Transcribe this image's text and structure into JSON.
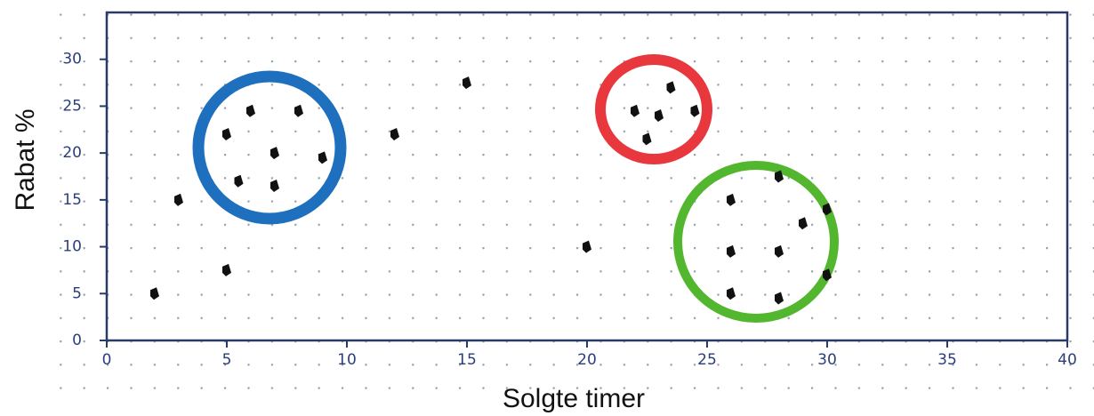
{
  "chart_data": {
    "type": "scatter",
    "x_label": "Solgte timer",
    "y_label": "Rabat %",
    "xlim": [
      0,
      40
    ],
    "ylim": [
      0,
      35
    ],
    "xticks": [
      0,
      5,
      10,
      15,
      20,
      25,
      30,
      35,
      40
    ],
    "yticks": [
      0,
      5,
      10,
      15,
      20,
      25,
      30
    ],
    "grid": true,
    "color": "#111111",
    "axis_color": "#2a3a66",
    "x": [
      2,
      3,
      5,
      5,
      6,
      5.5,
      7,
      7,
      8,
      9,
      12,
      15,
      20,
      22,
      23.5,
      23,
      22.5,
      24.5,
      26,
      28,
      26,
      28,
      29,
      30,
      26,
      28,
      30
    ],
    "y": [
      5,
      15,
      7.5,
      22,
      24.5,
      17,
      20,
      16.5,
      24.5,
      19.5,
      22,
      27.5,
      10,
      24.5,
      27,
      24,
      21.5,
      24.5,
      15,
      17.5,
      9.5,
      9.5,
      12.5,
      14,
      5,
      4.5,
      7
    ]
  }
}
